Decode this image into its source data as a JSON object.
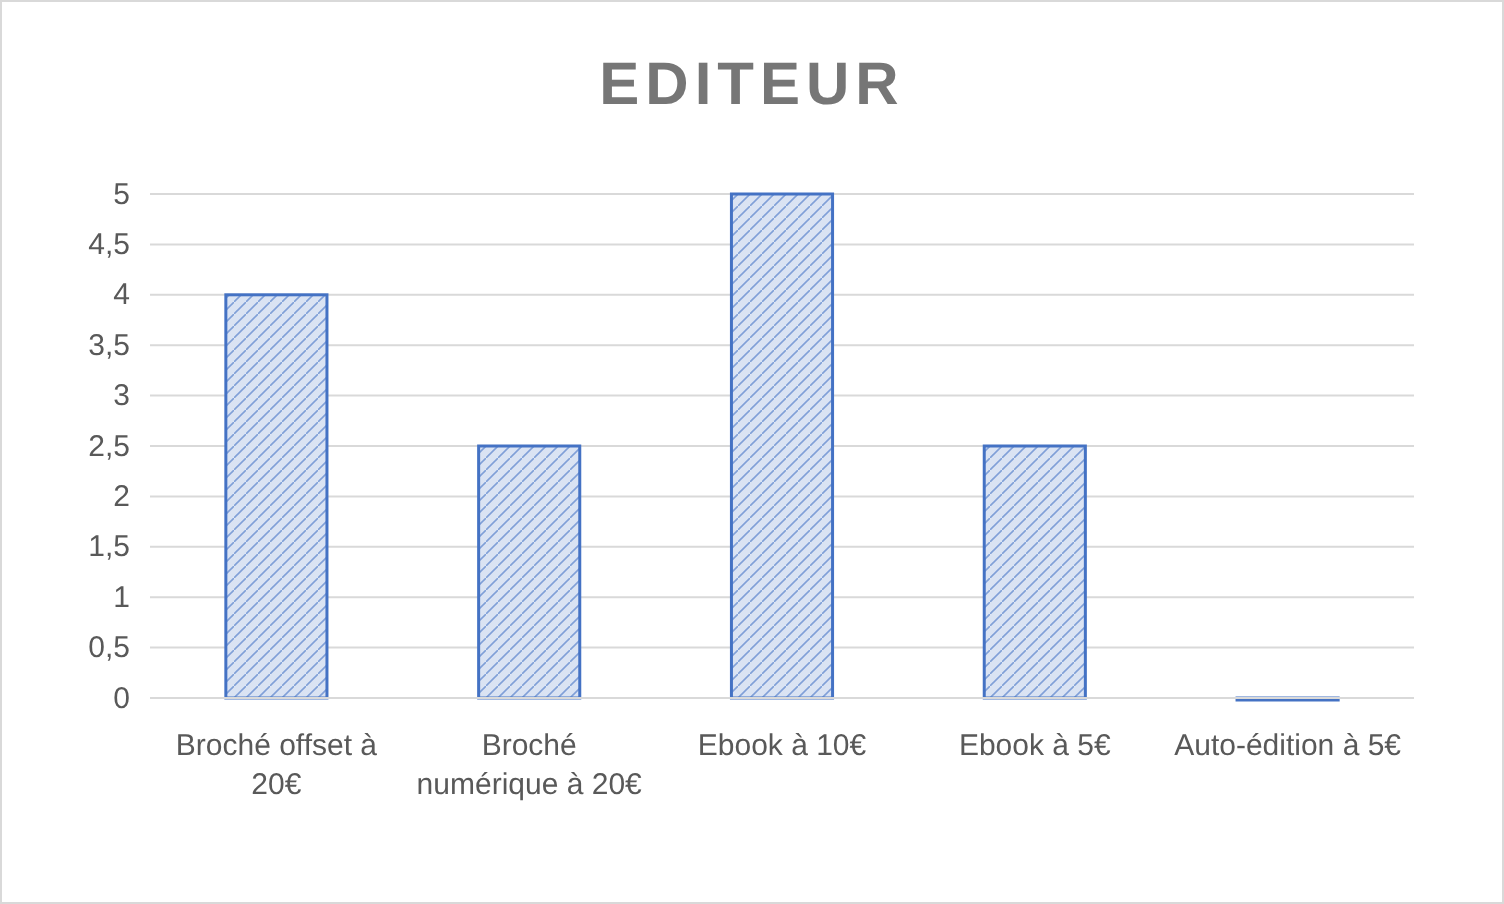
{
  "chart_data": {
    "type": "bar",
    "title": "EDITEUR",
    "categories": [
      "Broché offset à 20€",
      "Broché numérique à 20€",
      "Ebook à 10€",
      "Ebook à 5€",
      "Auto-édition à 5€"
    ],
    "values": [
      4,
      2.5,
      5,
      2.5,
      0
    ],
    "color": "#4472c4",
    "ylim": [
      0,
      5
    ],
    "yticks": [
      0,
      {
        "value": 0.5,
        "label": "0,5"
      },
      1,
      {
        "value": 1.5,
        "label": "1,5"
      },
      2,
      {
        "value": 2.5,
        "label": "2,5"
      },
      3,
      {
        "value": 3.5,
        "label": "3,5"
      },
      4,
      {
        "value": 4.5,
        "label": "4,5"
      },
      5
    ],
    "grid": "y"
  }
}
